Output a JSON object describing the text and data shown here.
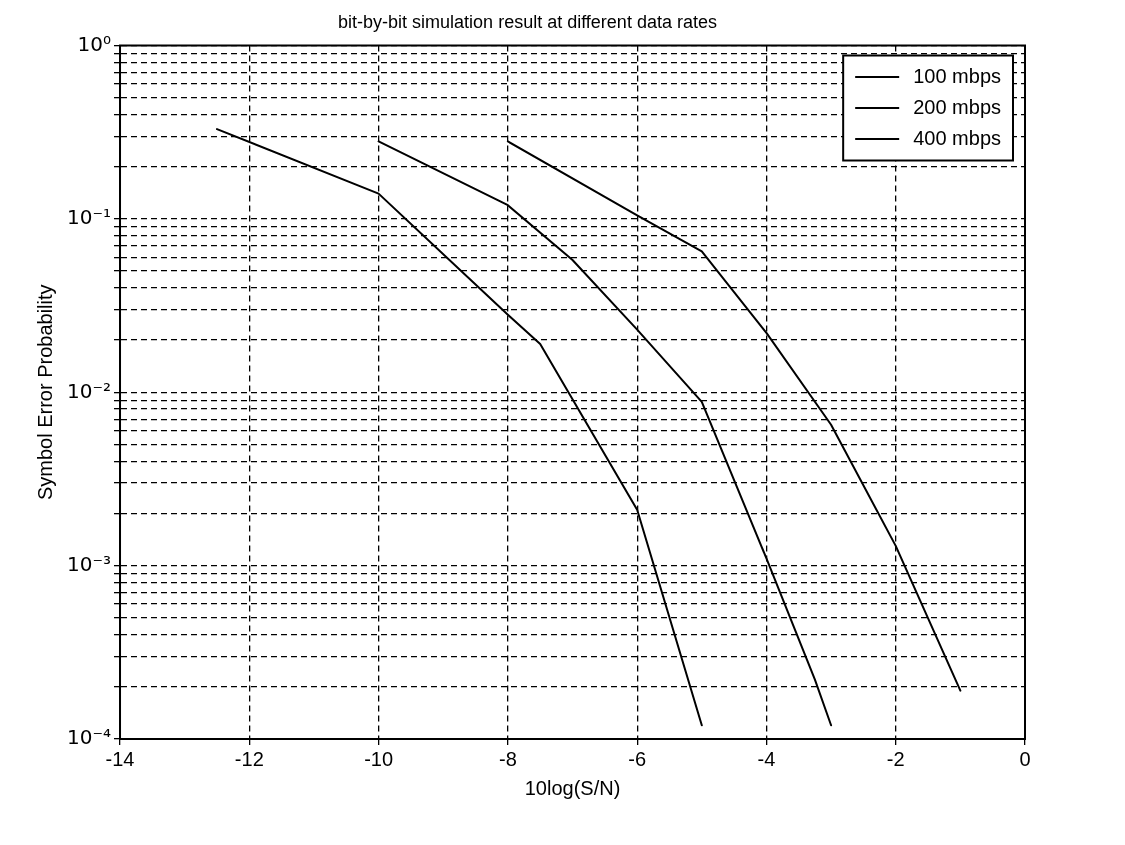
{
  "chart_data": {
    "type": "line",
    "title": "bit-by-bit simulation result at different data rates",
    "xlabel": "10log(S/N)",
    "ylabel": "Symbol Error Probability",
    "series": [
      {
        "name": "100 mbps",
        "color": "#000000",
        "x": [
          -12.5,
          -10,
          -8,
          -7.5,
          -6,
          -5
        ],
        "values": [
          0.33,
          0.14,
          0.028,
          0.019,
          0.0021,
          0.00012
        ]
      },
      {
        "name": "200 mbps",
        "color": "#000000",
        "x": [
          -10,
          -8,
          -7,
          -6,
          -5,
          -4,
          -3.25,
          -3
        ],
        "values": [
          0.28,
          0.12,
          0.058,
          0.023,
          0.0088,
          0.0011,
          0.00022,
          0.00012
        ]
      },
      {
        "name": "400 mbps",
        "color": "#000000",
        "x": [
          -8,
          -6,
          -5,
          -4,
          -3,
          -2,
          -1
        ],
        "values": [
          0.28,
          0.105,
          0.065,
          0.022,
          0.0065,
          0.0013,
          0.00019
        ]
      }
    ],
    "xlim": [
      -14,
      0
    ],
    "xticks": [
      -14,
      -12,
      -10,
      -8,
      -6,
      -4,
      -2,
      0
    ],
    "ylim": [
      0.0001,
      1
    ],
    "log": "y",
    "yticks": [
      {
        "value": 0.0001,
        "label": "10⁻⁴"
      },
      {
        "value": 0.0002,
        "label": null
      },
      {
        "value": 0.0003,
        "label": null
      },
      {
        "value": 0.0004,
        "label": null
      },
      {
        "value": 0.0005,
        "label": null
      },
      {
        "value": 0.0006,
        "label": null
      },
      {
        "value": 0.0007,
        "label": null
      },
      {
        "value": 0.0008,
        "label": null
      },
      {
        "value": 0.0009,
        "label": null
      },
      {
        "value": 0.001,
        "label": "10⁻³"
      },
      {
        "value": 0.002,
        "label": null
      },
      {
        "value": 0.003,
        "label": null
      },
      {
        "value": 0.004,
        "label": null
      },
      {
        "value": 0.005,
        "label": null
      },
      {
        "value": 0.006,
        "label": null
      },
      {
        "value": 0.007,
        "label": null
      },
      {
        "value": 0.008,
        "label": null
      },
      {
        "value": 0.009,
        "label": null
      },
      {
        "value": 0.01,
        "label": "10⁻²"
      },
      {
        "value": 0.02,
        "label": null
      },
      {
        "value": 0.03,
        "label": null
      },
      {
        "value": 0.04,
        "label": null
      },
      {
        "value": 0.05,
        "label": null
      },
      {
        "value": 0.06,
        "label": null
      },
      {
        "value": 0.07,
        "label": null
      },
      {
        "value": 0.08,
        "label": null
      },
      {
        "value": 0.09,
        "label": null
      },
      {
        "value": 0.1,
        "label": "10⁻¹"
      },
      {
        "value": 0.2,
        "label": null
      },
      {
        "value": 0.3,
        "label": null
      },
      {
        "value": 0.4,
        "label": null
      },
      {
        "value": 0.5,
        "label": null
      },
      {
        "value": 0.6,
        "label": null
      },
      {
        "value": 0.7,
        "label": null
      },
      {
        "value": 0.8,
        "label": null
      },
      {
        "value": 0.9,
        "label": null
      },
      {
        "value": 1,
        "label": "10⁰"
      }
    ],
    "grid": true,
    "legend": "top right",
    "marker": "none",
    "line_style": "solid"
  }
}
